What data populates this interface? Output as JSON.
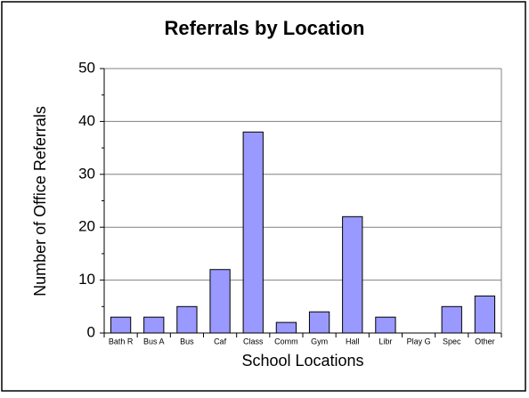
{
  "chart_data": {
    "type": "bar",
    "title": "Referrals by Location",
    "x_label": "School Locations",
    "y_label": "Number of Office Referrals",
    "categories": [
      "Bath R",
      "Bus A",
      "Bus",
      "Caf",
      "Class",
      "Comm",
      "Gym",
      "Hall",
      "Libr",
      "Play G",
      "Spec",
      "Other"
    ],
    "values": [
      3,
      3,
      5,
      12,
      38,
      2,
      4,
      22,
      3,
      0,
      5,
      7
    ],
    "color": "#9999ff",
    "ylim": [
      0,
      50
    ],
    "yticks": [
      0,
      10,
      20,
      30,
      40,
      50
    ],
    "grid": true
  }
}
